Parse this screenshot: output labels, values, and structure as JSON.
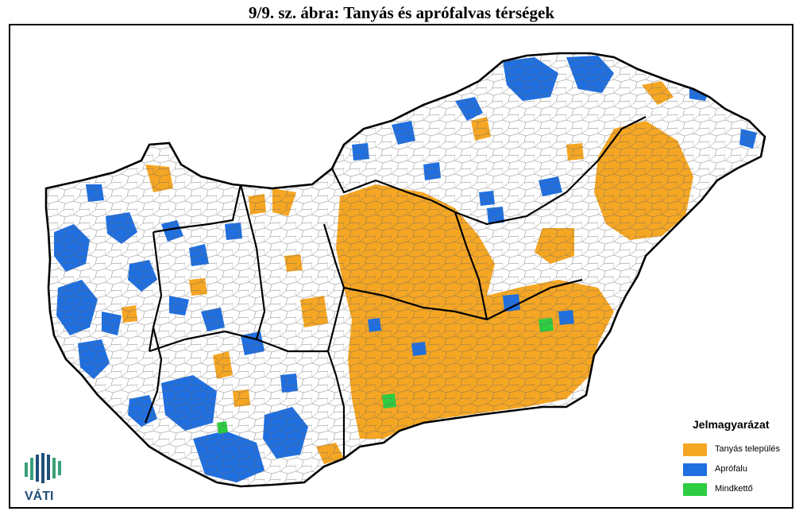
{
  "title": "9/9. sz. ábra: Tanyás és aprófalvas térségek",
  "colors": {
    "tanyas": "#f5a623",
    "aprofalu": "#1f6fe0",
    "mindketto": "#2ecc40",
    "border": "#000000",
    "municipality": "#555555",
    "logo": "#1f4e79",
    "logo_accent": "#3aa07a"
  },
  "legend": {
    "title": "Jelmagyarázat",
    "items": [
      {
        "label": "Tanyás település",
        "color": "#f5a623"
      },
      {
        "label": "Aprófalu",
        "color": "#1f6fe0"
      },
      {
        "label": "Mindkettő",
        "color": "#2ecc40"
      }
    ]
  },
  "logo": {
    "text": "VÁTI",
    "icon": "vati-logo-icon"
  }
}
